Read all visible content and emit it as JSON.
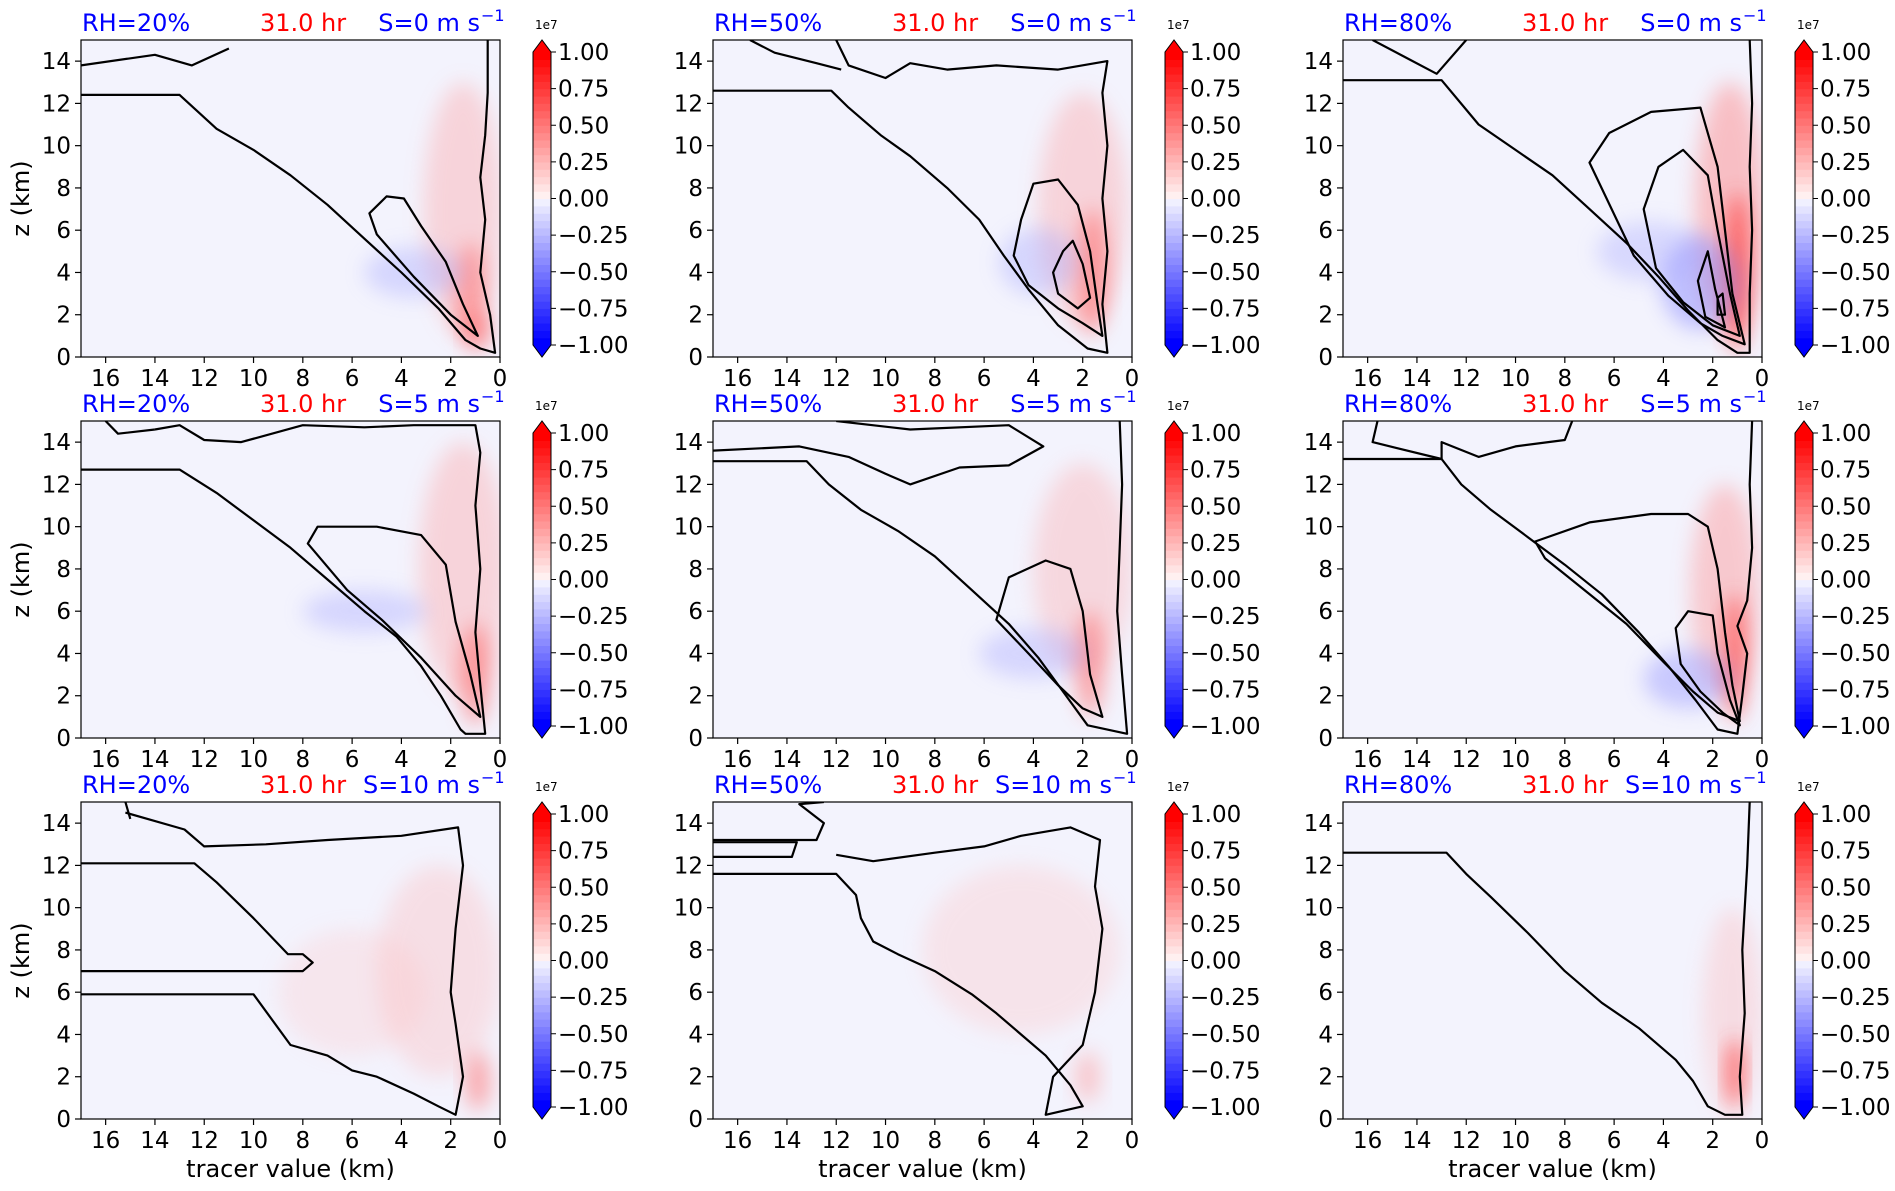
{
  "figure": {
    "ylabel": "z (km)",
    "xlabel": "tracer value (km)",
    "colorbar": {
      "multiplier": "1e7",
      "ticks": [
        "1.00",
        "0.75",
        "0.50",
        "0.25",
        "0.00",
        "−0.25",
        "−0.50",
        "−0.75",
        "−1.00"
      ],
      "neg_color": "#0000ff",
      "pos_color": "#ff0000",
      "mid_color": "#f6f6ff"
    },
    "colors": {
      "rh": "#0000ff",
      "time": "#ff0000",
      "shear": "#0000ff",
      "background": "#f3f3fd",
      "contour": "#000000"
    }
  },
  "chart_data": [
    {
      "type": "heatmap",
      "rh_label": "RH=20%",
      "time_label": "31.0 hr",
      "shear_label": "S=0 m s",
      "shear_sup": "−1",
      "xlim": [
        17,
        0
      ],
      "ylim": [
        0,
        15
      ],
      "x_ticks": [
        "16",
        "14",
        "12",
        "10",
        "8",
        "6",
        "4",
        "2",
        "0"
      ],
      "y_ticks": [
        "0",
        "2",
        "4",
        "6",
        "8",
        "10",
        "12",
        "14"
      ]
    },
    {
      "type": "heatmap",
      "rh_label": "RH=50%",
      "time_label": "31.0 hr",
      "shear_label": "S=0 m s",
      "shear_sup": "−1",
      "xlim": [
        17,
        0
      ],
      "ylim": [
        0,
        15
      ],
      "x_ticks": [
        "16",
        "14",
        "12",
        "10",
        "8",
        "6",
        "4",
        "2",
        "0"
      ],
      "y_ticks": [
        "0",
        "2",
        "4",
        "6",
        "8",
        "10",
        "12",
        "14"
      ]
    },
    {
      "type": "heatmap",
      "rh_label": "RH=80%",
      "time_label": "31.0 hr",
      "shear_label": "S=0 m s",
      "shear_sup": "−1",
      "xlim": [
        17,
        0
      ],
      "ylim": [
        0,
        15
      ],
      "x_ticks": [
        "16",
        "14",
        "12",
        "10",
        "8",
        "6",
        "4",
        "2",
        "0"
      ],
      "y_ticks": [
        "0",
        "2",
        "4",
        "6",
        "8",
        "10",
        "12",
        "14"
      ]
    },
    {
      "type": "heatmap",
      "rh_label": "RH=20%",
      "time_label": "31.0 hr",
      "shear_label": "S=5 m s",
      "shear_sup": "−1",
      "xlim": [
        17,
        0
      ],
      "ylim": [
        0,
        15
      ],
      "x_ticks": [
        "16",
        "14",
        "12",
        "10",
        "8",
        "6",
        "4",
        "2",
        "0"
      ],
      "y_ticks": [
        "0",
        "2",
        "4",
        "6",
        "8",
        "10",
        "12",
        "14"
      ]
    },
    {
      "type": "heatmap",
      "rh_label": "RH=50%",
      "time_label": "31.0 hr",
      "shear_label": "S=5 m s",
      "shear_sup": "−1",
      "xlim": [
        17,
        0
      ],
      "ylim": [
        0,
        15
      ],
      "x_ticks": [
        "16",
        "14",
        "12",
        "10",
        "8",
        "6",
        "4",
        "2",
        "0"
      ],
      "y_ticks": [
        "0",
        "2",
        "4",
        "6",
        "8",
        "10",
        "12",
        "14"
      ]
    },
    {
      "type": "heatmap",
      "rh_label": "RH=80%",
      "time_label": "31.0 hr",
      "shear_label": "S=5 m s",
      "shear_sup": "−1",
      "xlim": [
        17,
        0
      ],
      "ylim": [
        0,
        15
      ],
      "x_ticks": [
        "16",
        "14",
        "12",
        "10",
        "8",
        "6",
        "4",
        "2",
        "0"
      ],
      "y_ticks": [
        "0",
        "2",
        "4",
        "6",
        "8",
        "10",
        "12",
        "14"
      ]
    },
    {
      "type": "heatmap",
      "rh_label": "RH=20%",
      "time_label": "31.0 hr",
      "shear_label": "S=10 m s",
      "shear_sup": "−1",
      "xlim": [
        17,
        0
      ],
      "ylim": [
        0,
        15
      ],
      "x_ticks": [
        "16",
        "14",
        "12",
        "10",
        "8",
        "6",
        "4",
        "2",
        "0"
      ],
      "y_ticks": [
        "0",
        "2",
        "4",
        "6",
        "8",
        "10",
        "12",
        "14"
      ]
    },
    {
      "type": "heatmap",
      "rh_label": "RH=50%",
      "time_label": "31.0 hr",
      "shear_label": "S=10 m s",
      "shear_sup": "−1",
      "xlim": [
        17,
        0
      ],
      "ylim": [
        0,
        15
      ],
      "x_ticks": [
        "16",
        "14",
        "12",
        "10",
        "8",
        "6",
        "4",
        "2",
        "0"
      ],
      "y_ticks": [
        "0",
        "2",
        "4",
        "6",
        "8",
        "10",
        "12",
        "14"
      ]
    },
    {
      "type": "heatmap",
      "rh_label": "RH=80%",
      "time_label": "31.0 hr",
      "shear_label": "S=10 m s",
      "shear_sup": "−1",
      "xlim": [
        17,
        0
      ],
      "ylim": [
        0,
        15
      ],
      "x_ticks": [
        "16",
        "14",
        "12",
        "10",
        "8",
        "6",
        "4",
        "2",
        "0"
      ],
      "y_ticks": [
        "0",
        "2",
        "4",
        "6",
        "8",
        "10",
        "12",
        "14"
      ]
    }
  ]
}
